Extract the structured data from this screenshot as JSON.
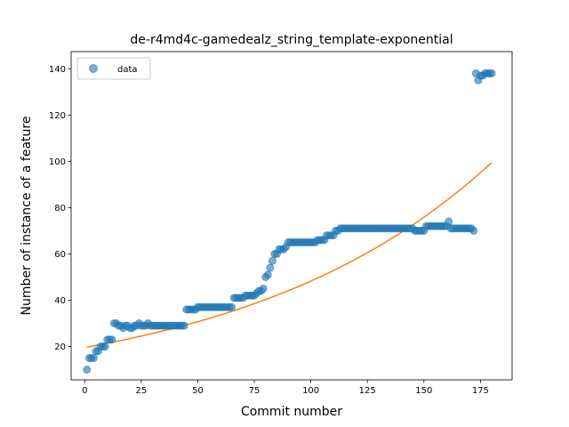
{
  "chart_data": {
    "type": "scatter",
    "title": "de-r4md4c-gamedealz_string_template-exponential",
    "xlabel": "Commit number",
    "ylabel": "Number of instance of a feature",
    "xlim": [
      -6,
      189
    ],
    "ylim": [
      5.6,
      147.4
    ],
    "xticks": [
      0,
      25,
      50,
      75,
      100,
      125,
      150,
      175
    ],
    "yticks": [
      20,
      40,
      60,
      80,
      100,
      120,
      140
    ],
    "grid": false,
    "legend": {
      "placement": "upper-left",
      "entries": [
        "data"
      ]
    },
    "series": [
      {
        "name": "data",
        "kind": "scatter",
        "color": "#1f77b4",
        "x": [
          1,
          2,
          3,
          4,
          5,
          6,
          7,
          8,
          9,
          10,
          11,
          12,
          13,
          14,
          15,
          16,
          17,
          18,
          19,
          20,
          21,
          22,
          23,
          24,
          25,
          26,
          27,
          28,
          29,
          30,
          31,
          32,
          33,
          34,
          35,
          36,
          37,
          38,
          39,
          40,
          41,
          42,
          43,
          44,
          45,
          46,
          47,
          48,
          49,
          50,
          51,
          52,
          53,
          54,
          55,
          56,
          57,
          58,
          59,
          60,
          61,
          62,
          63,
          64,
          65,
          66,
          67,
          68,
          69,
          70,
          71,
          72,
          73,
          74,
          75,
          76,
          77,
          78,
          79,
          80,
          81,
          82,
          83,
          84,
          85,
          86,
          87,
          88,
          89,
          90,
          91,
          92,
          93,
          94,
          95,
          96,
          97,
          98,
          99,
          100,
          101,
          102,
          103,
          104,
          105,
          106,
          107,
          108,
          109,
          110,
          111,
          112,
          113,
          114,
          115,
          116,
          117,
          118,
          119,
          120,
          121,
          122,
          123,
          124,
          125,
          126,
          127,
          128,
          129,
          130,
          131,
          132,
          133,
          134,
          135,
          136,
          137,
          138,
          139,
          140,
          141,
          142,
          143,
          144,
          145,
          146,
          147,
          148,
          149,
          150,
          151,
          152,
          153,
          154,
          155,
          156,
          157,
          158,
          159,
          160,
          161,
          162,
          163,
          164,
          165,
          166,
          167,
          168,
          169,
          170,
          171,
          172,
          173,
          174,
          175,
          176,
          177,
          178,
          179,
          180
        ],
        "y": [
          10,
          15,
          15,
          15,
          18,
          18,
          20,
          20,
          20,
          23,
          23,
          23,
          30,
          30,
          29,
          29,
          28,
          29,
          29,
          28,
          28,
          29,
          29,
          30,
          29,
          29,
          29,
          30,
          29,
          29,
          29,
          29,
          29,
          29,
          29,
          29,
          29,
          29,
          29,
          29,
          29,
          29,
          29,
          29,
          36,
          36,
          36,
          36,
          36,
          37,
          37,
          37,
          37,
          37,
          37,
          37,
          37,
          37,
          37,
          37,
          37,
          37,
          37,
          37,
          37,
          41,
          41,
          41,
          41,
          41,
          42,
          42,
          42,
          42,
          42,
          43,
          44,
          44,
          45,
          50,
          51,
          54,
          57,
          60,
          60,
          62,
          62,
          62,
          63,
          65,
          65,
          65,
          65,
          65,
          65,
          65,
          65,
          65,
          65,
          65,
          65,
          65,
          66,
          66,
          66,
          66,
          68,
          68,
          68,
          68,
          70,
          70,
          71,
          71,
          71,
          71,
          71,
          71,
          71,
          71,
          71,
          71,
          71,
          71,
          71,
          71,
          71,
          71,
          71,
          71,
          71,
          71,
          71,
          71,
          71,
          71,
          71,
          71,
          71,
          71,
          71,
          71,
          71,
          71,
          71,
          70,
          70,
          70,
          70,
          70,
          72,
          72,
          72,
          72,
          72,
          72,
          72,
          72,
          72,
          72,
          74,
          71,
          71,
          71,
          71,
          71,
          71,
          71,
          71,
          71,
          71,
          70,
          138,
          135,
          137,
          137,
          138,
          138,
          138,
          138
        ]
      },
      {
        "name": "",
        "kind": "line",
        "color": "#ff7f0e",
        "x": [
          1,
          180
        ],
        "fit": {
          "a": 19.55,
          "b": 0.00904
        }
      }
    ]
  }
}
